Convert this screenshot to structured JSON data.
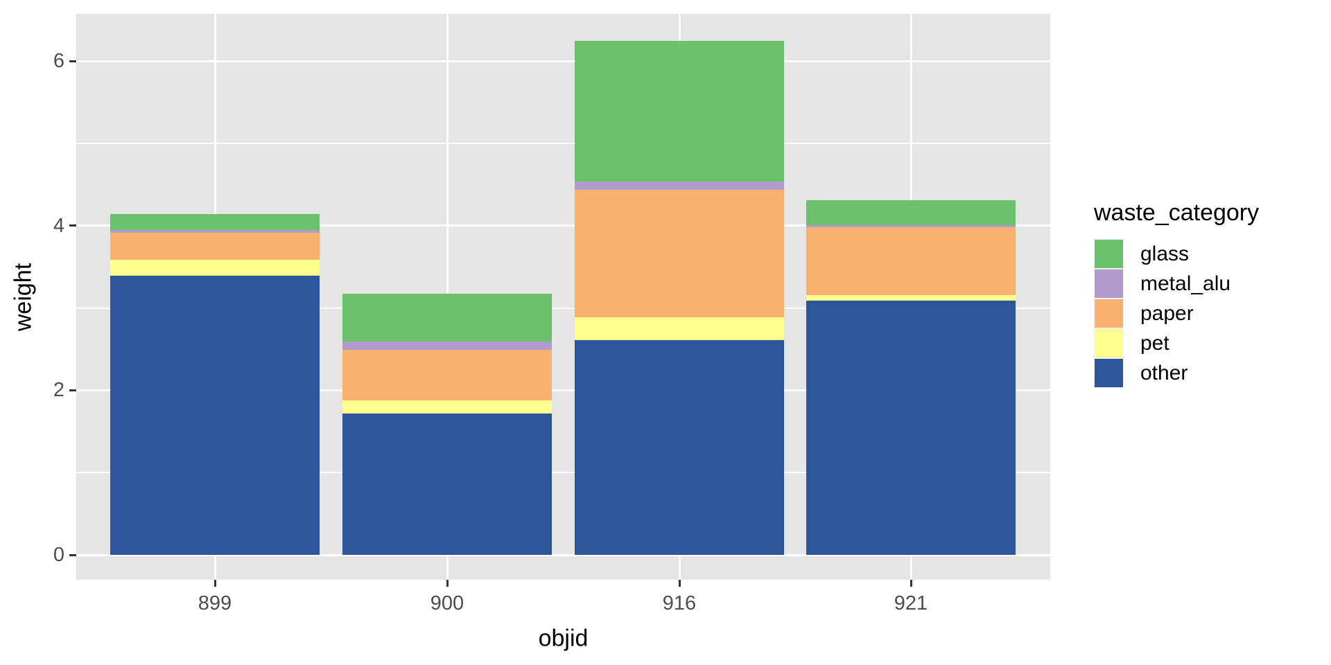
{
  "chart_data": {
    "type": "bar",
    "stacked": true,
    "xlabel": "objid",
    "ylabel": "weight",
    "legend_title": "waste_category",
    "legend_position": "right",
    "grid": true,
    "categories": [
      "899",
      "900",
      "916",
      "921"
    ],
    "series": [
      {
        "name": "glass",
        "color": "#6BC06B",
        "values": [
          0.19,
          0.58,
          1.71,
          0.3
        ]
      },
      {
        "name": "metal_alu",
        "color": "#B19CC9",
        "values": [
          0.04,
          0.1,
          0.1,
          0.03
        ]
      },
      {
        "name": "paper",
        "color": "#F9B16D",
        "values": [
          0.32,
          0.61,
          1.55,
          0.82
        ]
      },
      {
        "name": "pet",
        "color": "#FEFE8C",
        "values": [
          0.2,
          0.16,
          0.28,
          0.07
        ]
      },
      {
        "name": "other",
        "color": "#2D559C",
        "values": [
          3.39,
          1.72,
          2.61,
          3.09
        ]
      }
    ],
    "stack_order": [
      "other",
      "pet",
      "paper",
      "metal_alu",
      "glass"
    ],
    "totals": [
      4.14,
      3.17,
      6.25,
      4.31
    ],
    "y_ticks": [
      0,
      2,
      4,
      6
    ],
    "y_minor_ticks": [
      1,
      3,
      5
    ],
    "ylim": [
      -0.31,
      6.57
    ],
    "panel_background": "#E5E5E5",
    "gridline_color": "#ffffff",
    "axis_text_color": "#4D4D4D"
  }
}
